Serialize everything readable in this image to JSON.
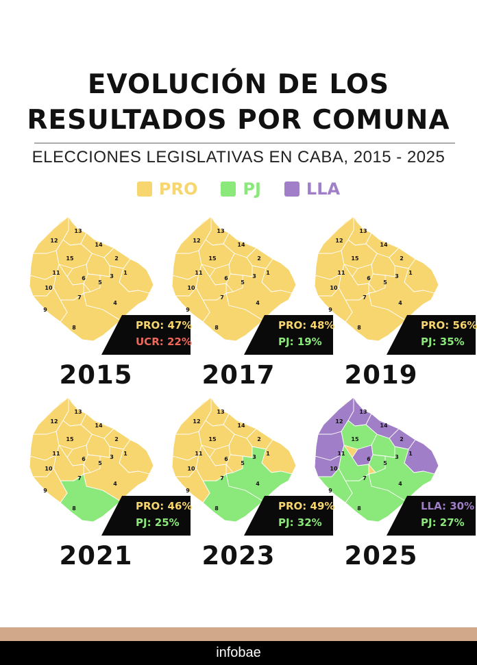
{
  "title": {
    "line1": "EVOLUCIÓN DE LOS",
    "line2": "RESULTADOS POR COMUNA",
    "subtitle": "ELECCIONES LEGISLATIVAS EN CABA, 2015 - 2025"
  },
  "legend": [
    {
      "label": "PRO",
      "color": "#f7d56f"
    },
    {
      "label": "PJ",
      "color": "#8be97b"
    },
    {
      "label": "LLA",
      "color": "#a07fc8"
    }
  ],
  "colors": {
    "PRO": "#f7d56f",
    "PJ": "#8be97b",
    "LLA": "#a07fc8",
    "UCR": "#f0685a",
    "badge_bg": "#0a0a0a",
    "footer_strip": "#d2a88a",
    "footer_bg": "#000000"
  },
  "comunas": [
    "1",
    "2",
    "3",
    "4",
    "5",
    "6",
    "7",
    "8",
    "9",
    "10",
    "11",
    "12",
    "13",
    "14",
    "15"
  ],
  "maps": [
    {
      "year": "2015",
      "winners": {
        "1": "PRO",
        "2": "PRO",
        "3": "PRO",
        "4": "PRO",
        "5": "PRO",
        "6": "PRO",
        "7": "PRO",
        "8": "PRO",
        "9": "PRO",
        "10": "PRO",
        "11": "PRO",
        "12": "PRO",
        "13": "PRO",
        "14": "PRO",
        "15": "PRO"
      },
      "results": [
        {
          "label": "PRO: 47%",
          "party": "PRO"
        },
        {
          "label": "UCR: 22%",
          "party": "UCR"
        }
      ]
    },
    {
      "year": "2017",
      "winners": {
        "1": "PRO",
        "2": "PRO",
        "3": "PRO",
        "4": "PRO",
        "5": "PRO",
        "6": "PRO",
        "7": "PRO",
        "8": "PRO",
        "9": "PRO",
        "10": "PRO",
        "11": "PRO",
        "12": "PRO",
        "13": "PRO",
        "14": "PRO",
        "15": "PRO"
      },
      "results": [
        {
          "label": "PRO: 48%",
          "party": "PRO"
        },
        {
          "label": "PJ: 19%",
          "party": "PJ"
        }
      ]
    },
    {
      "year": "2019",
      "winners": {
        "1": "PRO",
        "2": "PRO",
        "3": "PRO",
        "4": "PRO",
        "5": "PRO",
        "6": "PRO",
        "7": "PRO",
        "8": "PRO",
        "9": "PRO",
        "10": "PRO",
        "11": "PRO",
        "12": "PRO",
        "13": "PRO",
        "14": "PRO",
        "15": "PRO"
      },
      "results": [
        {
          "label": "PRO: 56%",
          "party": "PRO"
        },
        {
          "label": "PJ: 35%",
          "party": "PJ"
        }
      ]
    },
    {
      "year": "2021",
      "winners": {
        "1": "PRO",
        "2": "PRO",
        "3": "PRO",
        "4": "PRO",
        "5": "PRO",
        "6": "PRO",
        "7": "PRO",
        "8": "PJ",
        "9": "PRO",
        "10": "PRO",
        "11": "PRO",
        "12": "PRO",
        "13": "PRO",
        "14": "PRO",
        "15": "PRO"
      },
      "results": [
        {
          "label": "PRO: 46%",
          "party": "PRO"
        },
        {
          "label": "PJ: 25%",
          "party": "PJ"
        }
      ]
    },
    {
      "year": "2023",
      "winners": {
        "1": "PRO",
        "2": "PRO",
        "3": "PRO",
        "4": "PJ",
        "5": "PRO",
        "6": "PRO",
        "7": "PRO",
        "8": "PJ",
        "9": "PRO",
        "10": "PRO",
        "11": "PRO",
        "12": "PRO",
        "13": "PRO",
        "14": "PRO",
        "15": "PRO"
      },
      "results": [
        {
          "label": "PRO: 49%",
          "party": "PRO"
        },
        {
          "label": "PJ: 32%",
          "party": "PJ"
        }
      ]
    },
    {
      "year": "2025",
      "winners": {
        "1": "LLA",
        "2": "LLA",
        "3": "PJ",
        "4": "PJ",
        "5": "PJ",
        "6": "LLA",
        "7": "PJ",
        "8": "PJ",
        "9": "PJ",
        "10": "LLA",
        "11": "LLA",
        "12": "LLA",
        "13": "LLA",
        "14": "LLA",
        "15": "PJ"
      },
      "results": [
        {
          "label": "LLA: 30%",
          "party": "LLA"
        },
        {
          "label": "PJ: 27%",
          "party": "PJ"
        }
      ]
    }
  ],
  "footer": {
    "brand": "infobae"
  }
}
